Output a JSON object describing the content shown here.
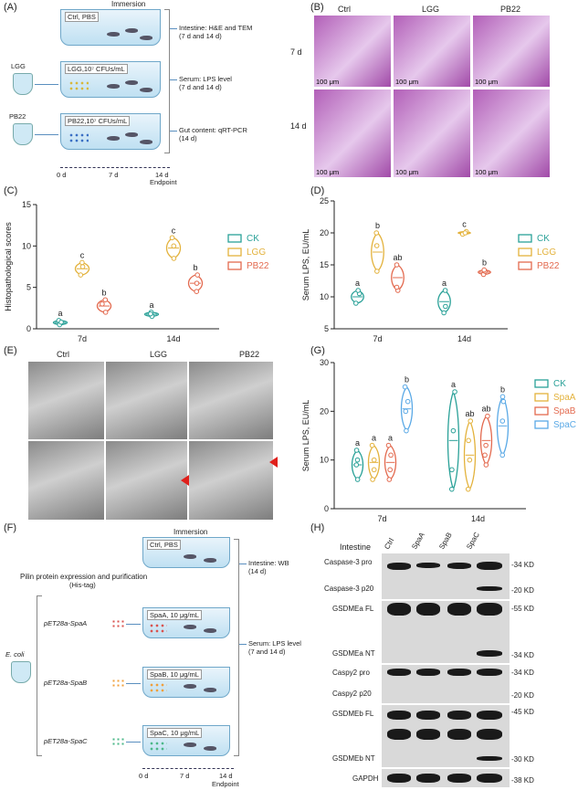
{
  "panels": {
    "A": "(A)",
    "B": "(B)",
    "C": "(C)",
    "D": "(D)",
    "E": "(E)",
    "F": "(F)",
    "G": "(G)",
    "H": "(H)"
  },
  "A": {
    "immersion": "Immersion",
    "tanks": [
      "Ctrl, PBS",
      "LGG,10⁷ CFUs/mL",
      "PB22,10⁷ CFUs/mL"
    ],
    "strains": [
      "LGG",
      "PB22"
    ],
    "outcomes": [
      "Intestine: H&E and TEM\n(7 d and 14 d)",
      "Serum: LPS level\n(7 d and 14 d)",
      "Gut content: qRT-PCR\n(14 d)"
    ],
    "timeline": [
      "0 d",
      "7 d",
      "14 d",
      "Endpoint"
    ]
  },
  "B": {
    "cols": [
      "Ctrl",
      "LGG",
      "PB22"
    ],
    "rows": [
      "7 d",
      "14 d"
    ],
    "scale": "100 μm"
  },
  "C": {
    "ylabel": "Histopathological scores",
    "ylim": [
      0,
      15
    ],
    "yticks": [
      "0",
      "5",
      "10",
      "15"
    ],
    "categories": [
      "7d",
      "14d"
    ],
    "legend": [
      "CK",
      "LGG",
      "PB22"
    ],
    "colors": [
      "#2aa198",
      "#e3b23c",
      "#e36a4f"
    ],
    "letters": [
      [
        "a",
        "c",
        "b"
      ],
      [
        "a",
        "c",
        "b"
      ]
    ],
    "points": [
      [
        [
          0.5,
          1.0,
          0.8
        ],
        [
          6.5,
          8.0,
          7.5
        ],
        [
          2.0,
          3.0,
          3.5
        ]
      ],
      [
        [
          1.5,
          2.0,
          1.8
        ],
        [
          8.5,
          10.0,
          11.0
        ],
        [
          4.5,
          5.5,
          6.5
        ]
      ]
    ]
  },
  "D": {
    "ylabel": "Serum LPS, EU/mL",
    "ylim": [
      5,
      25
    ],
    "yticks": [
      "5",
      "10",
      "15",
      "20",
      "25"
    ],
    "categories": [
      "7d",
      "14d"
    ],
    "legend": [
      "CK",
      "LGG",
      "PB22"
    ],
    "colors": [
      "#2aa198",
      "#e3b23c",
      "#e36a4f"
    ],
    "letters": [
      [
        "a",
        "b",
        "ab"
      ],
      [
        "a",
        "c",
        "b"
      ]
    ],
    "points": [
      [
        [
          9,
          10.5,
          11
        ],
        [
          14,
          18,
          20
        ],
        [
          11,
          11.5,
          15
        ]
      ],
      [
        [
          7.5,
          8.5,
          11
        ],
        [
          19.8,
          20.2,
          20
        ],
        [
          13.5,
          14,
          14.2
        ]
      ]
    ]
  },
  "E": {
    "cols": [
      "Ctrl",
      "LGG",
      "PB22"
    ]
  },
  "G": {
    "ylabel": "Serum LPS, EU/mL",
    "ylim": [
      0,
      30
    ],
    "yticks": [
      "0",
      "10",
      "20",
      "30"
    ],
    "categories": [
      "7d",
      "14d"
    ],
    "legend": [
      "CK",
      "SpaA",
      "SpaB",
      "SpaC"
    ],
    "colors": [
      "#2aa198",
      "#e3b23c",
      "#e36a4f",
      "#5aa9e6"
    ],
    "letters": [
      [
        "a",
        "a",
        "a",
        "b"
      ],
      [
        "a",
        "ab",
        "ab",
        "b"
      ]
    ],
    "points": [
      [
        [
          6,
          9,
          10,
          12
        ],
        [
          6,
          8,
          10,
          13
        ],
        [
          6,
          8,
          11,
          13
        ],
        [
          16,
          20,
          22,
          25
        ]
      ],
      [
        [
          4,
          8,
          16,
          24
        ],
        [
          4,
          10,
          14,
          18
        ],
        [
          9,
          11,
          13,
          19
        ],
        [
          11,
          18,
          22,
          23
        ]
      ]
    ]
  },
  "F": {
    "immersion": "Immersion",
    "expr": "Pilin protein expression and purification",
    "tag": "(His-tag)",
    "plasmids": [
      "pET28a-SpaA",
      "pET28a-SpaB",
      "pET28a-SpaC"
    ],
    "tanks": [
      "Ctrl, PBS",
      "SpaA, 10 μg/mL",
      "SpaB, 10 μg/mL",
      "SpaC, 10 μg/mL"
    ],
    "ecoli": "E. coli",
    "outcomes": [
      "Intestine: WB\n(14 d)",
      "Serum: LPS level\n(7 and 14 d)"
    ],
    "timeline": [
      "0 d",
      "7 d",
      "14 d",
      "Endpoint"
    ]
  },
  "H": {
    "header": "Intestine",
    "lanes": [
      "Ctrl",
      "SpaA",
      "SpaB",
      "SpaC"
    ],
    "blots": [
      "Caspase-3 pro",
      "Caspase-3 p20",
      "GSDMEa FL",
      "GSDMEa NT",
      "Caspy2 pro",
      "Caspy2 p20",
      "GSDMEb FL",
      "GSDMEb NT",
      "GAPDH"
    ],
    "markers": [
      "-34 KD",
      "-20 KD",
      "-55 KD",
      "-34 KD",
      "-34 KD",
      "-20 KD",
      "-45 KD",
      "-30 KD",
      "-38 KD"
    ]
  }
}
